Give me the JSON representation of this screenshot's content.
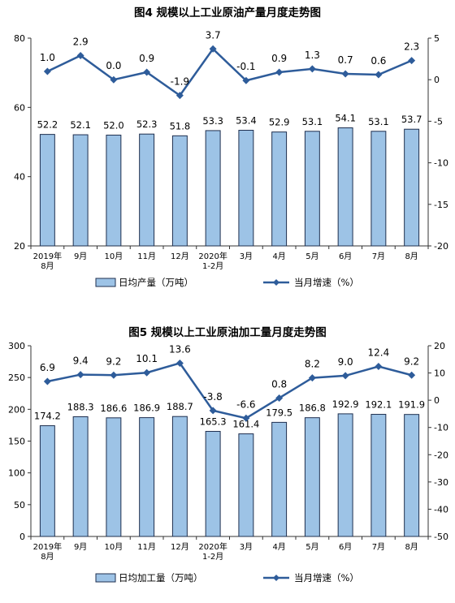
{
  "colors": {
    "bar_fill": "#9DC3E6",
    "bar_stroke": "#1F2F4F",
    "line": "#2E5C9A",
    "text": "#000000",
    "axis": "#333333"
  },
  "chart_data": [
    {
      "type": "bar",
      "title": "图4  规模以上工业原油产量月度走势图",
      "categories": [
        "2019年\n8月",
        "9月",
        "10月",
        "11月",
        "12月",
        "2020年\n1-2月",
        "3月",
        "4月",
        "5月",
        "6月",
        "7月",
        "8月"
      ],
      "series": [
        {
          "name": "日均产量（万吨）",
          "type": "bar",
          "axis": "left",
          "values": [
            52.2,
            52.1,
            52.0,
            52.3,
            51.8,
            53.3,
            53.4,
            52.9,
            53.1,
            54.1,
            53.1,
            53.7
          ]
        },
        {
          "name": "当月增速（%）",
          "type": "line",
          "axis": "right",
          "values": [
            1.0,
            2.9,
            0.0,
            0.9,
            -1.9,
            3.7,
            -0.1,
            0.9,
            1.3,
            0.7,
            0.6,
            2.3
          ]
        }
      ],
      "bar_label_text": [
        "52.2",
        "52.1",
        "52.0",
        "52.3",
        "51.8",
        "53.3",
        "53.4",
        "52.9",
        "53.1",
        "54.1",
        "53.1",
        "53.7"
      ],
      "line_label_text": [
        "1.0",
        "2.9",
        "0.0",
        "0.9",
        "-1.9",
        "3.7",
        "-0.1",
        "0.9",
        "1.3",
        "0.7",
        "0.6",
        "2.3"
      ],
      "ylim_left": [
        20,
        80
      ],
      "yticks_left": [
        20,
        40,
        60,
        80
      ],
      "ylim_right": [
        -20,
        5
      ],
      "yticks_right": [
        -20,
        -15,
        -10,
        -5,
        0,
        5
      ],
      "grid": false,
      "legend_position": "bottom"
    },
    {
      "type": "bar",
      "title": "图5  规模以上工业原油加工量月度走势图",
      "categories": [
        "2019年\n8月",
        "9月",
        "10月",
        "11月",
        "12月",
        "2020年\n1-2月",
        "3月",
        "4月",
        "5月",
        "6月",
        "7月",
        "8月"
      ],
      "series": [
        {
          "name": "日均加工量（万吨）",
          "type": "bar",
          "axis": "left",
          "values": [
            174.2,
            188.3,
            186.6,
            186.9,
            188.7,
            165.3,
            161.4,
            179.5,
            186.8,
            192.9,
            192.1,
            191.9
          ]
        },
        {
          "name": "当月增速（%）",
          "type": "line",
          "axis": "right",
          "values": [
            6.9,
            9.4,
            9.2,
            10.1,
            13.6,
            -3.8,
            -6.6,
            0.8,
            8.2,
            9.0,
            12.4,
            9.2
          ]
        }
      ],
      "bar_label_text": [
        "174.2",
        "188.3",
        "186.6",
        "186.9",
        "188.7",
        "165.3",
        "161.4",
        "179.5",
        "186.8",
        "192.9",
        "192.1",
        "191.9"
      ],
      "line_label_text": [
        "6.9",
        "9.4",
        "9.2",
        "10.1",
        "13.6",
        "-3.8",
        "-6.6",
        "0.8",
        "8.2",
        "9.0",
        "12.4",
        "9.2"
      ],
      "ylim_left": [
        0,
        300
      ],
      "yticks_left": [
        0,
        50,
        100,
        150,
        200,
        250,
        300
      ],
      "ylim_right": [
        -50,
        20
      ],
      "yticks_right": [
        -50,
        -40,
        -30,
        -20,
        -10,
        0,
        10,
        20
      ],
      "grid": false,
      "legend_position": "bottom"
    }
  ]
}
